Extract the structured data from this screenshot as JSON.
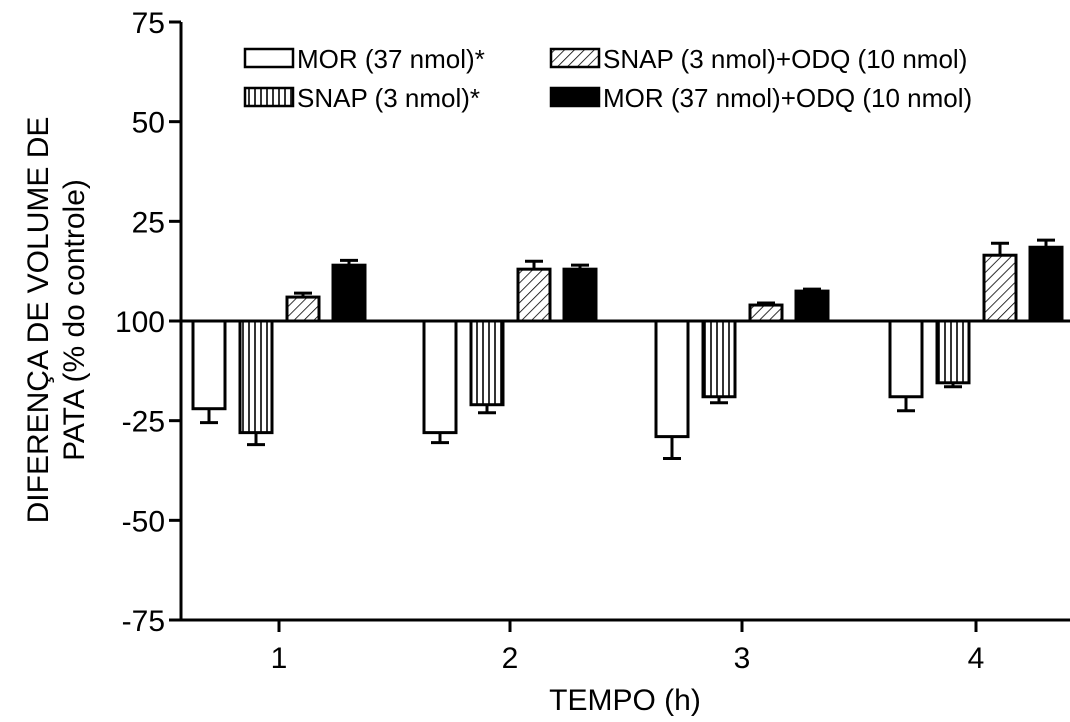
{
  "chart_data": {
    "type": "bar",
    "title": "",
    "xlabel": "TEMPO (h)",
    "ylabel_line1": "DIFERENÇA DE VOLUME DE",
    "ylabel_line2": "PATA (% do controle)",
    "categories": [
      "1",
      "2",
      "3",
      "4"
    ],
    "ylim": [
      -75,
      75
    ],
    "y_ticks": [
      75,
      50,
      25,
      0,
      -25,
      -50,
      -75
    ],
    "y_tick_labels": [
      "75",
      "50",
      "25",
      "100",
      "-25",
      "-50",
      "-75"
    ],
    "series": [
      {
        "name": "MOR (37 nmol)*",
        "pattern": "empty",
        "values": [
          -22,
          -28,
          -29,
          -19
        ],
        "errors": [
          3.5,
          2.5,
          5.5,
          3.5
        ]
      },
      {
        "name": "SNAP (3 nmol)*",
        "pattern": "vertical",
        "values": [
          -28,
          -21,
          -19,
          -15.5
        ],
        "errors": [
          3,
          2,
          1.5,
          1
        ]
      },
      {
        "name": "SNAP (3 nmol)+ODQ (10 nmol)",
        "pattern": "diagonal",
        "values": [
          6,
          13,
          4,
          16.5
        ],
        "errors": [
          1,
          2,
          0.5,
          3
        ]
      },
      {
        "name": "MOR (37 nmol)+ODQ (10 nmol)",
        "pattern": "solid",
        "values": [
          14,
          13,
          7.5,
          18.5
        ],
        "errors": [
          1.2,
          1,
          0.5,
          1.8
        ]
      }
    ],
    "legend_placement": "top-right",
    "grid": false,
    "colors": {
      "bar_fill_solid": "#000000",
      "bar_stroke": "#000000",
      "background": "#ffffff"
    }
  }
}
